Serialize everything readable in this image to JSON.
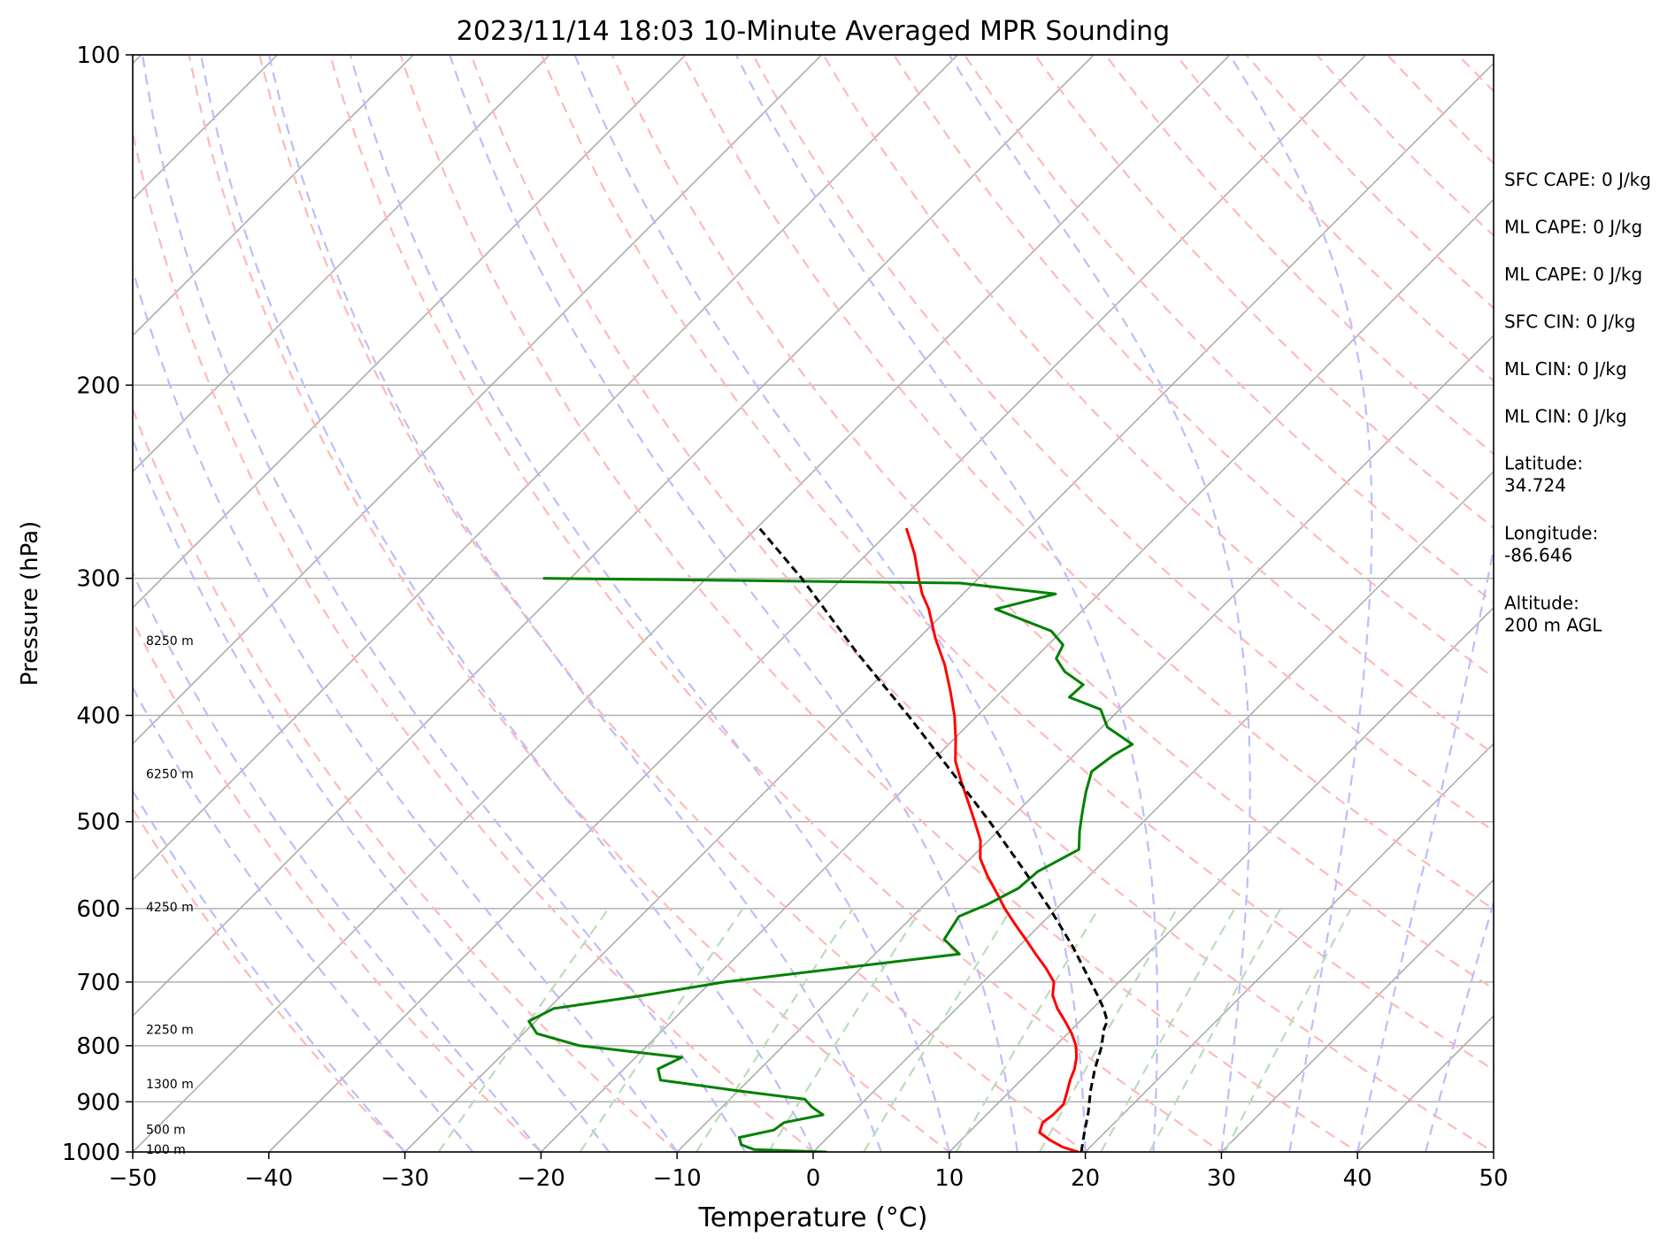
{
  "chart_data": {
    "type": "line",
    "title": "2023/11/14 18:03 10-Minute Averaged MPR Sounding",
    "xlabel": "Temperature (°C)",
    "ylabel": "Pressure (hPa)",
    "xlim": [
      -50,
      50
    ],
    "ylim": [
      1000,
      100
    ],
    "y_scale": "log",
    "skew": true,
    "grid": true,
    "x_ticks": [
      -50,
      -40,
      -30,
      -20,
      -10,
      0,
      10,
      20,
      30,
      40,
      50
    ],
    "x_tick_labels": [
      "−50",
      "−40",
      "−30",
      "−20",
      "−10",
      "0",
      "10",
      "20",
      "30",
      "40",
      "50"
    ],
    "y_ticks": [
      1000,
      900,
      800,
      700,
      600,
      500,
      400,
      300,
      200,
      100
    ],
    "y_tick_labels": [
      "1000",
      "900",
      "800",
      "700",
      "600",
      "500",
      "400",
      "300",
      "200",
      "100"
    ],
    "series": [
      {
        "kind": "temperature",
        "color": "#ff0000",
        "points": [
          [
            1000,
            19.5
          ],
          [
            990,
            18
          ],
          [
            975,
            16.5
          ],
          [
            960,
            15.2
          ],
          [
            940,
            14.7
          ],
          [
            925,
            14.9
          ],
          [
            905,
            14.9
          ],
          [
            880,
            14.2
          ],
          [
            860,
            13.6
          ],
          [
            840,
            13.1
          ],
          [
            820,
            12.4
          ],
          [
            800,
            11.5
          ],
          [
            780,
            10.3
          ],
          [
            760,
            8.9
          ],
          [
            740,
            7.4
          ],
          [
            720,
            6.1
          ],
          [
            700,
            5.2
          ],
          [
            680,
            3.6
          ],
          [
            660,
            1.8
          ],
          [
            640,
            0.0
          ],
          [
            620,
            -1.9
          ],
          [
            600,
            -3.8
          ],
          [
            580,
            -5.6
          ],
          [
            560,
            -7.5
          ],
          [
            540,
            -9.3
          ],
          [
            520,
            -10.6
          ],
          [
            500,
            -12.4
          ],
          [
            480,
            -14.3
          ],
          [
            460,
            -16.3
          ],
          [
            440,
            -18.3
          ],
          [
            420,
            -19.9
          ],
          [
            400,
            -21.7
          ],
          [
            380,
            -23.8
          ],
          [
            360,
            -26.1
          ],
          [
            340,
            -28.8
          ],
          [
            320,
            -31.4
          ],
          [
            310,
            -33.0
          ],
          [
            300,
            -34.4
          ],
          [
            285,
            -36.5
          ],
          [
            270,
            -39.0
          ]
        ]
      },
      {
        "kind": "dewpoint",
        "color": "#008000",
        "points": [
          [
            1000,
            1.0
          ],
          [
            995,
            -4.5
          ],
          [
            985,
            -5.8
          ],
          [
            970,
            -6.5
          ],
          [
            955,
            -4.5
          ],
          [
            940,
            -4.3
          ],
          [
            925,
            -2.0
          ],
          [
            910,
            -3.4
          ],
          [
            895,
            -4.5
          ],
          [
            880,
            -9.8
          ],
          [
            860,
            -16.5
          ],
          [
            840,
            -17.5
          ],
          [
            820,
            -16.6
          ],
          [
            800,
            -25.0
          ],
          [
            780,
            -29.0
          ],
          [
            760,
            -30.5
          ],
          [
            740,
            -29.6
          ],
          [
            720,
            -24.0
          ],
          [
            700,
            -19.0
          ],
          [
            660,
            -3.8
          ],
          [
            640,
            -6.0
          ],
          [
            610,
            -6.6
          ],
          [
            595,
            -5.4
          ],
          [
            575,
            -4.3
          ],
          [
            555,
            -4.1
          ],
          [
            530,
            -2.7
          ],
          [
            510,
            -4.0
          ],
          [
            490,
            -5.2
          ],
          [
            470,
            -6.4
          ],
          [
            450,
            -7.5
          ],
          [
            435,
            -7.1
          ],
          [
            425,
            -6.5
          ],
          [
            410,
            -9.6
          ],
          [
            395,
            -11.4
          ],
          [
            385,
            -14.6
          ],
          [
            375,
            -14.5
          ],
          [
            365,
            -16.8
          ],
          [
            355,
            -18.4
          ],
          [
            345,
            -18.9
          ],
          [
            335,
            -20.8
          ],
          [
            320,
            -26.5
          ],
          [
            310,
            -23.2
          ],
          [
            303,
            -31.0
          ],
          [
            300,
            -62.0
          ]
        ]
      },
      {
        "kind": "parcel",
        "color": "#000000",
        "points": [
          [
            1000,
            19.7
          ],
          [
            960,
            18.5
          ],
          [
            920,
            17.3
          ],
          [
            880,
            15.9
          ],
          [
            840,
            14.6
          ],
          [
            800,
            13.4
          ],
          [
            775,
            12.4
          ],
          [
            760,
            12.0
          ],
          [
            740,
            10.8
          ],
          [
            720,
            9.4
          ],
          [
            700,
            7.9
          ],
          [
            650,
            4.0
          ],
          [
            600,
            -0.5
          ],
          [
            550,
            -5.6
          ],
          [
            500,
            -11.3
          ],
          [
            450,
            -17.8
          ],
          [
            400,
            -25.1
          ],
          [
            350,
            -33.6
          ],
          [
            300,
            -43.0
          ],
          [
            270,
            -49.8
          ]
        ]
      }
    ],
    "height_labels": [
      {
        "pressure": 994,
        "text": "100 m"
      },
      {
        "pressure": 954,
        "text": "500 m"
      },
      {
        "pressure": 867,
        "text": "1300 m"
      },
      {
        "pressure": 773,
        "text": "2250 m"
      },
      {
        "pressure": 598,
        "text": "4250 m"
      },
      {
        "pressure": 452,
        "text": "6250 m"
      },
      {
        "pressure": 342,
        "text": "8250 m"
      }
    ],
    "indices": [
      "SFC CAPE: 0 J/kg",
      "ML CAPE: 0 J/kg",
      "ML CAPE: 0 J/kg",
      "SFC CIN: 0 J/kg",
      "ML CIN: 0 J/kg",
      "ML CIN: 0 J/kg",
      "Latitude:",
      "34.724",
      "Longitude:",
      "-86.646",
      "Altitude:",
      "200 m AGL"
    ],
    "background_lines": {
      "isotherm_color": "#a8a8a8",
      "dry_adiabat_color": "#ffb8b8",
      "moist_adiabat_color": "#bdbdfa",
      "mixing_ratio_color": "#b8ddb8"
    }
  }
}
